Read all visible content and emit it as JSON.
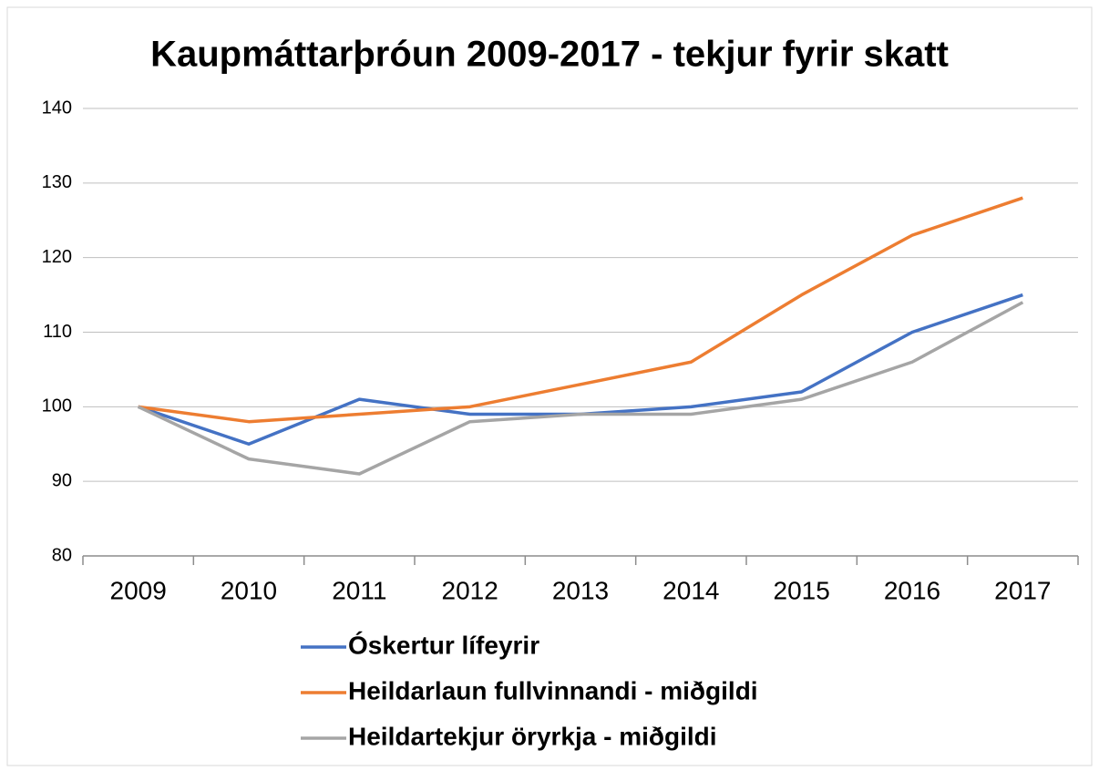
{
  "chart_data": {
    "type": "line",
    "title": "Kaupmáttarþróun 2009-2017 - tekjur fyrir skatt",
    "categories": [
      "2009",
      "2010",
      "2011",
      "2012",
      "2013",
      "2014",
      "2015",
      "2016",
      "2017"
    ],
    "series": [
      {
        "name": "Óskertur lífeyrir",
        "color": "#4472c4",
        "values": [
          100,
          95,
          101,
          99,
          99,
          100,
          102,
          110,
          115
        ]
      },
      {
        "name": "Heildarlaun fullvinnandi - miðgildi",
        "color": "#ed7d31",
        "values": [
          100,
          98,
          99,
          100,
          103,
          106,
          115,
          123,
          128
        ]
      },
      {
        "name": "Heildartekjur öryrkja - miðgildi",
        "color": "#a5a5a5",
        "values": [
          100,
          93,
          91,
          98,
          99,
          99,
          101,
          106,
          114
        ]
      }
    ],
    "ylim": [
      80,
      140
    ],
    "yticks": [
      80,
      90,
      100,
      110,
      120,
      130,
      140
    ],
    "grid": true,
    "legend": "bottom"
  }
}
